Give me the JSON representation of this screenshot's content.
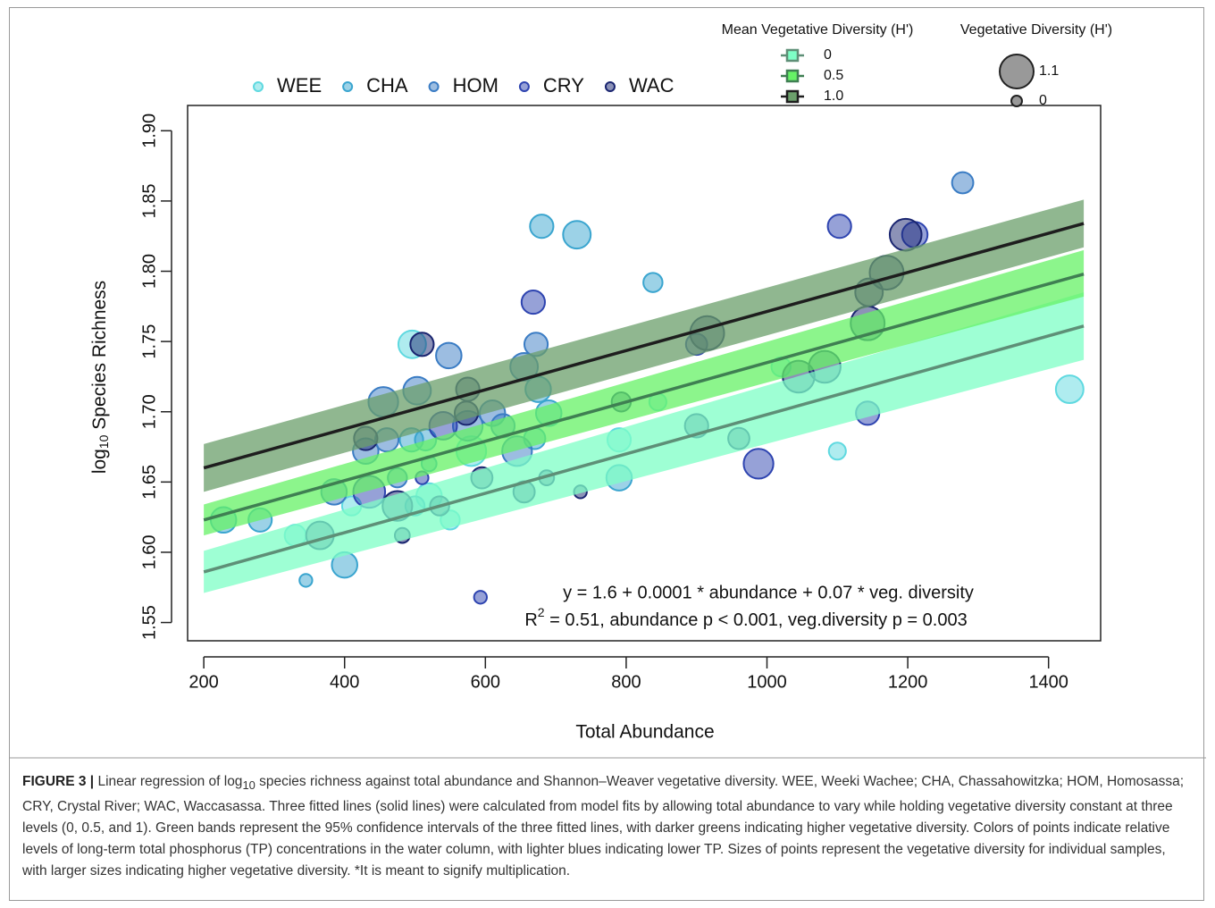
{
  "chart_data": {
    "type": "scatter",
    "x_label": "Total Abundance",
    "y_label": {
      "base": "log",
      "sub": "10",
      "rest": " Species Richness"
    },
    "xlim": [
      177,
      1474
    ],
    "ylim": [
      1.537,
      1.918
    ],
    "xticks": [
      200,
      400,
      600,
      800,
      1000,
      1200,
      1400
    ],
    "yticks": [
      1.55,
      {
        "value": 1.6,
        "label": "1.60"
      },
      1.65,
      {
        "value": 1.7,
        "label": "1.70"
      },
      1.75,
      {
        "value": 1.8,
        "label": "1.80"
      },
      1.85,
      {
        "value": 1.9,
        "label": "1.90"
      }
    ],
    "legend_position": "top",
    "series": [
      {
        "name": "WEE",
        "color": "#5fd9e0",
        "x": [
          496,
          1430,
          1100,
          845,
          790,
          520,
          410,
          330,
          550,
          1020,
          580
        ],
        "values": [
          1.748,
          1.716,
          1.672,
          1.707,
          1.68,
          1.64,
          1.633,
          1.612,
          1.623,
          1.732,
          1.672
        ],
        "sizes": [
          0.8,
          0.8,
          0.3,
          0.3,
          0.6,
          0.7,
          0.4,
          0.5,
          0.4,
          0.4,
          0.9
        ]
      },
      {
        "name": "CHA",
        "color": "#3aa5cf",
        "x": [
          680,
          730,
          838,
          675,
          690,
          670,
          790,
          400,
          345,
          280,
          228,
          515,
          500,
          520,
          495
        ],
        "values": [
          1.832,
          1.826,
          1.792,
          1.716,
          1.699,
          1.681,
          1.653,
          1.591,
          1.58,
          1.623,
          1.623,
          1.68,
          1.633,
          1.663,
          1.68
        ],
        "sizes": [
          0.6,
          0.8,
          0.4,
          0.7,
          0.7,
          0.5,
          0.7,
          0.7,
          0.1,
          0.6,
          0.7,
          0.5,
          0.4,
          0.2,
          0.6
        ]
      },
      {
        "name": "HOM",
        "color": "#3a7cc4",
        "x": [
          1278,
          548,
          503,
          455,
          575,
          610,
          625,
          645,
          655,
          672,
          460,
          430,
          385,
          475
        ],
        "values": [
          1.863,
          1.74,
          1.715,
          1.707,
          1.69,
          1.699,
          1.69,
          1.672,
          1.732,
          1.748,
          1.68,
          1.672,
          1.643,
          1.653
        ],
        "sizes": [
          0.5,
          0.7,
          0.8,
          0.9,
          0.9,
          0.7,
          0.6,
          0.9,
          0.8,
          0.6,
          0.6,
          0.7,
          0.7,
          0.4
        ]
      },
      {
        "name": "CRY",
        "color": "#2e44b0",
        "x": [
          668,
          1103,
          900,
          540,
          1143,
          1210,
          435,
          510,
          593,
          988
        ],
        "values": [
          1.778,
          1.832,
          1.748,
          1.69,
          1.699,
          1.826,
          1.643,
          1.653,
          1.568,
          1.663
        ],
        "sizes": [
          0.6,
          0.6,
          0.5,
          0.8,
          0.6,
          0.7,
          1.0,
          0.1,
          0.1,
          0.9
        ]
      },
      {
        "name": "WAC",
        "color": "#1a2570",
        "x": [
          510,
          915,
          1170,
          1145,
          1143,
          1197,
          1045,
          1082,
          900,
          960,
          793,
          575,
          573,
          430,
          595,
          535,
          475,
          482,
          735,
          687,
          655,
          365
        ],
        "values": [
          1.748,
          1.756,
          1.799,
          1.785,
          1.763,
          1.826,
          1.725,
          1.732,
          1.69,
          1.681,
          1.707,
          1.716,
          1.699,
          1.681,
          1.653,
          1.633,
          1.633,
          1.612,
          1.643,
          1.653,
          1.643,
          1.612
        ],
        "sizes": [
          0.6,
          1.1,
          1.1,
          0.8,
          1.1,
          1.0,
          1.0,
          1.0,
          0.6,
          0.5,
          0.4,
          0.6,
          0.6,
          0.6,
          0.5,
          0.4,
          0.9,
          0.2,
          0.1,
          0.2,
          0.5,
          0.8
        ]
      }
    ],
    "fit_lines": {
      "title": "Mean Vegetative Diversity (H')",
      "series": [
        {
          "name": "0",
          "color": "#5e8f77",
          "band_color": "#7effc6",
          "x": [
            200,
            1450
          ],
          "values": [
            1.586,
            1.761
          ],
          "lower": [
            1.571,
            1.737
          ],
          "upper": [
            1.601,
            1.785
          ]
        },
        {
          "name": "0.5",
          "color": "#3f7f52",
          "band_color": "#66f266",
          "x": [
            200,
            1450
          ],
          "values": [
            1.623,
            1.798
          ],
          "lower": [
            1.612,
            1.782
          ],
          "upper": [
            1.634,
            1.815
          ]
        },
        {
          "name": "1.0",
          "color": "#1e1e1e",
          "band_color": "#6b9f6b",
          "x": [
            200,
            1450
          ],
          "values": [
            1.66,
            1.834
          ],
          "lower": [
            1.643,
            1.817
          ],
          "upper": [
            1.677,
            1.851
          ]
        }
      ]
    },
    "size_legend": {
      "title": "Vegetative Diversity (H')",
      "values": [
        1.1,
        0
      ]
    },
    "annotations": {
      "equation": "y = 1.6 + 0.0001 * abundance + 0.07 * veg. diversity",
      "r2": {
        "base": "R",
        "sup": "2",
        "rest": " = 0.51, abundance p < 0.001, veg.diversity p = 0.003"
      }
    }
  },
  "caption": {
    "label": "FIGURE 3 |",
    "text1": " Linear regression of log",
    "sub": "10",
    "text2": " species richness against total abundance and Shannon–Weaver vegetative diversity. WEE, Weeki Wachee; CHA, Chassahowitzka; HOM, Homosassa; CRY, Crystal River; WAC, Waccasassa. Three fitted lines (solid lines) were calculated from model fits by allowing total abundance to vary while holding vegetative diversity constant at three levels (0, 0.5, and 1). Green bands represent the 95% confidence intervals of the three fitted lines, with darker greens indicating higher vegetative diversity. Colors of points indicate relative levels of long-term total phosphorus (TP) concentrations in the water column, with lighter blues indicating lower TP. Sizes of points represent the vegetative diversity for individual samples, with larger sizes indicating higher vegetative diversity. *It is meant to signify multiplication."
  }
}
